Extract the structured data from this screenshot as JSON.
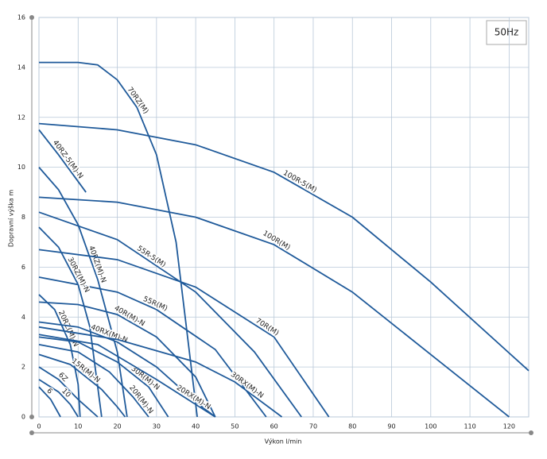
{
  "chart_data": {
    "type": "line",
    "color": "#1f5a9a",
    "x_label": "Výkon l/min",
    "y_label": "Dopravní výška m",
    "annotation": "50Hz",
    "xlim": [
      0,
      125
    ],
    "ylim": [
      0,
      16
    ],
    "xticks": [
      0,
      10,
      20,
      30,
      40,
      50,
      60,
      70,
      80,
      90,
      100,
      110,
      120
    ],
    "yticks": [
      0,
      2,
      4,
      6,
      8,
      10,
      12,
      14,
      16
    ],
    "grid": true,
    "series": [
      {
        "name": "70RZ(M)",
        "x": [
          0,
          10,
          15,
          20,
          25,
          30,
          35,
          40.4
        ],
        "values": [
          14.2,
          14.2,
          14.1,
          13.5,
          12.4,
          10.5,
          7,
          0
        ]
      },
      {
        "name": "100R-5(M)",
        "x": [
          0,
          20,
          40,
          60,
          80,
          100,
          125
        ],
        "values": [
          11.75,
          11.5,
          10.9,
          9.8,
          8,
          5.4,
          1.85
        ]
      },
      {
        "name": "100R(M)",
        "x": [
          0,
          20,
          40,
          60,
          80,
          100,
          120
        ],
        "values": [
          8.8,
          8.6,
          8,
          6.9,
          5,
          2.5,
          0
        ]
      },
      {
        "name": "40RZ-5(M)-N",
        "x": [
          0,
          5,
          12
        ],
        "values": [
          11.5,
          10.5,
          9
        ]
      },
      {
        "name": "40RZ(M)-N",
        "x": [
          0,
          5,
          10,
          15,
          20,
          22.5
        ],
        "values": [
          10,
          9.1,
          7.7,
          5.5,
          2.6,
          0
        ]
      },
      {
        "name": "55R-5(M)",
        "x": [
          0,
          20,
          40,
          55,
          67
        ],
        "values": [
          8.2,
          7.1,
          5,
          2.6,
          0
        ]
      },
      {
        "name": "70R(M)",
        "x": [
          0,
          20,
          40,
          60,
          74
        ],
        "values": [
          6.7,
          6.3,
          5.2,
          3.2,
          0
        ]
      },
      {
        "name": "55R(M)",
        "x": [
          0,
          20,
          30,
          45,
          58
        ],
        "values": [
          5.6,
          5.0,
          4.3,
          2.7,
          0
        ]
      },
      {
        "name": "30RZ(M)-N",
        "x": [
          0,
          5,
          10,
          13,
          16
        ],
        "values": [
          7.6,
          6.8,
          5.3,
          3.6,
          0
        ]
      },
      {
        "name": "40R(M)-N",
        "x": [
          0,
          10,
          20,
          30,
          40,
          45
        ],
        "values": [
          4.6,
          4.5,
          4.1,
          3.2,
          1.6,
          0
        ]
      },
      {
        "name": "20RZ(M)-N",
        "x": [
          0,
          4,
          8,
          10,
          10.5
        ],
        "values": [
          4.9,
          4.3,
          2.9,
          1.3,
          0
        ]
      },
      {
        "name": "40RX(M)-N",
        "x": [
          0,
          10,
          20,
          30,
          40,
          45
        ],
        "values": [
          3.8,
          3.6,
          3.0,
          2.0,
          0.6,
          0
        ]
      },
      {
        "name": "30RX(M)-N",
        "x": [
          0,
          20,
          40,
          50,
          62
        ],
        "values": [
          3.6,
          3.1,
          2.2,
          1.4,
          0
        ]
      },
      {
        "name": "30R(M)-N",
        "x": [
          0,
          10,
          20,
          28,
          33
        ],
        "values": [
          3.2,
          3.0,
          2.2,
          1.2,
          0
        ]
      },
      {
        "name": "20RX(M)-N",
        "x": [
          0,
          15,
          30,
          40,
          45
        ],
        "values": [
          3.3,
          2.9,
          1.5,
          0.5,
          0
        ]
      },
      {
        "name": "20R(M)-N",
        "x": [
          0,
          10,
          18,
          24,
          28
        ],
        "values": [
          2.9,
          2.6,
          1.8,
          0.8,
          0
        ]
      },
      {
        "name": "15R(M)-N",
        "x": [
          0,
          8,
          16,
          20,
          22
        ],
        "values": [
          2.5,
          2.1,
          1.1,
          0.4,
          0
        ]
      },
      {
        "name": "6Z",
        "x": [
          0,
          5,
          10,
          15
        ],
        "values": [
          2.0,
          1.5,
          0.7,
          0
        ]
      },
      {
        "name": "10",
        "x": [
          0,
          5,
          8,
          10
        ],
        "values": [
          1.5,
          1.0,
          0.5,
          0
        ]
      },
      {
        "name": "6",
        "x": [
          0,
          3,
          5.5
        ],
        "values": [
          1.2,
          0.7,
          0
        ]
      }
    ]
  }
}
